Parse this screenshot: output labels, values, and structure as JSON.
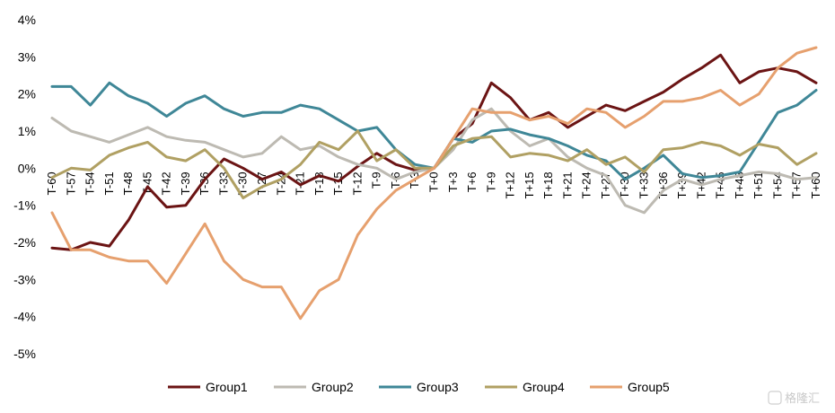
{
  "watermark": "格隆汇",
  "chart_data": {
    "type": "line",
    "ylim": [
      -5,
      4
    ],
    "y_ticks": [
      4,
      3,
      2,
      1,
      0,
      -1,
      -2,
      -3,
      -4,
      -5
    ],
    "y_tick_labels": [
      "4%",
      "3%",
      "2%",
      "1%",
      "0%",
      "-1%",
      "-2%",
      "-3%",
      "-4%",
      "-5%"
    ],
    "x_range": [
      -60,
      60
    ],
    "x_ticks": [
      -60,
      -57,
      -54,
      -51,
      -48,
      -45,
      -42,
      -39,
      -36,
      -33,
      -30,
      -27,
      -24,
      -21,
      -18,
      -15,
      -12,
      -9,
      -6,
      -3,
      0,
      3,
      6,
      9,
      12,
      15,
      18,
      21,
      24,
      27,
      30,
      33,
      36,
      39,
      42,
      45,
      48,
      51,
      54,
      57,
      60
    ],
    "x_tick_labels": [
      "T-60",
      "T-57",
      "T-54",
      "T-51",
      "T-48",
      "T-45",
      "T-42",
      "T-39",
      "T-36",
      "T-33",
      "T-30",
      "T-27",
      "T-24",
      "T-21",
      "T-18",
      "T-15",
      "T-12",
      "T-9",
      "T-6",
      "T-3",
      "T+0",
      "T+3",
      "T+6",
      "T+9",
      "T+12",
      "T+15",
      "T+18",
      "T+21",
      "T+24",
      "T+27",
      "T+30",
      "T+33",
      "T+36",
      "T+39",
      "T+42",
      "T+45",
      "T+48",
      "T+51",
      "T+54",
      "T+57",
      "T+60"
    ],
    "grid": false,
    "legend_position": "bottom",
    "series": [
      {
        "name": "Group1",
        "color": "#6b1414",
        "points": [
          [
            -60,
            -2.15
          ],
          [
            -57,
            -2.2
          ],
          [
            -54,
            -2.0
          ],
          [
            -51,
            -2.1
          ],
          [
            -48,
            -1.4
          ],
          [
            -45,
            -0.5
          ],
          [
            -42,
            -1.05
          ],
          [
            -39,
            -1.0
          ],
          [
            -36,
            -0.3
          ],
          [
            -33,
            0.25
          ],
          [
            -30,
            0.0
          ],
          [
            -27,
            -0.3
          ],
          [
            -24,
            -0.1
          ],
          [
            -21,
            -0.45
          ],
          [
            -18,
            -0.2
          ],
          [
            -15,
            -0.35
          ],
          [
            -12,
            0.05
          ],
          [
            -9,
            0.4
          ],
          [
            -6,
            0.1
          ],
          [
            -3,
            -0.05
          ],
          [
            0,
            0.0
          ],
          [
            3,
            0.8
          ],
          [
            6,
            1.2
          ],
          [
            9,
            2.3
          ],
          [
            12,
            1.9
          ],
          [
            15,
            1.3
          ],
          [
            18,
            1.5
          ],
          [
            21,
            1.1
          ],
          [
            24,
            1.4
          ],
          [
            27,
            1.7
          ],
          [
            30,
            1.55
          ],
          [
            33,
            1.8
          ],
          [
            36,
            2.05
          ],
          [
            39,
            2.4
          ],
          [
            42,
            2.7
          ],
          [
            45,
            3.05
          ],
          [
            48,
            2.3
          ],
          [
            51,
            2.6
          ],
          [
            54,
            2.7
          ],
          [
            57,
            2.6
          ],
          [
            60,
            2.3
          ]
        ]
      },
      {
        "name": "Group2",
        "color": "#bdbab2",
        "points": [
          [
            -60,
            1.35
          ],
          [
            -57,
            1.0
          ],
          [
            -54,
            0.85
          ],
          [
            -51,
            0.7
          ],
          [
            -48,
            0.9
          ],
          [
            -45,
            1.1
          ],
          [
            -42,
            0.85
          ],
          [
            -39,
            0.75
          ],
          [
            -36,
            0.7
          ],
          [
            -33,
            0.5
          ],
          [
            -30,
            0.3
          ],
          [
            -27,
            0.4
          ],
          [
            -24,
            0.85
          ],
          [
            -21,
            0.5
          ],
          [
            -18,
            0.6
          ],
          [
            -15,
            0.3
          ],
          [
            -12,
            0.1
          ],
          [
            -9,
            0.0
          ],
          [
            -6,
            -0.3
          ],
          [
            -3,
            -0.1
          ],
          [
            0,
            0.0
          ],
          [
            3,
            0.5
          ],
          [
            6,
            1.3
          ],
          [
            9,
            1.6
          ],
          [
            12,
            1.0
          ],
          [
            15,
            0.6
          ],
          [
            18,
            0.8
          ],
          [
            21,
            0.3
          ],
          [
            24,
            0.0
          ],
          [
            27,
            -0.2
          ],
          [
            30,
            -1.0
          ],
          [
            33,
            -1.2
          ],
          [
            36,
            -0.6
          ],
          [
            39,
            -0.3
          ],
          [
            42,
            -0.45
          ],
          [
            45,
            -0.3
          ],
          [
            48,
            -0.2
          ],
          [
            51,
            -0.1
          ],
          [
            54,
            -0.15
          ],
          [
            57,
            -0.3
          ],
          [
            60,
            -0.25
          ]
        ]
      },
      {
        "name": "Group3",
        "color": "#3f8797",
        "points": [
          [
            -60,
            2.2
          ],
          [
            -57,
            2.2
          ],
          [
            -54,
            1.7
          ],
          [
            -51,
            2.3
          ],
          [
            -48,
            1.95
          ],
          [
            -45,
            1.75
          ],
          [
            -42,
            1.4
          ],
          [
            -39,
            1.75
          ],
          [
            -36,
            1.95
          ],
          [
            -33,
            1.6
          ],
          [
            -30,
            1.4
          ],
          [
            -27,
            1.5
          ],
          [
            -24,
            1.5
          ],
          [
            -21,
            1.7
          ],
          [
            -18,
            1.6
          ],
          [
            -15,
            1.3
          ],
          [
            -12,
            1.0
          ],
          [
            -9,
            1.1
          ],
          [
            -6,
            0.5
          ],
          [
            -3,
            0.1
          ],
          [
            0,
            0.0
          ],
          [
            3,
            0.8
          ],
          [
            6,
            0.7
          ],
          [
            9,
            1.0
          ],
          [
            12,
            1.05
          ],
          [
            15,
            0.9
          ],
          [
            18,
            0.8
          ],
          [
            21,
            0.6
          ],
          [
            24,
            0.35
          ],
          [
            27,
            0.2
          ],
          [
            30,
            -0.3
          ],
          [
            33,
            0.0
          ],
          [
            36,
            0.35
          ],
          [
            39,
            -0.15
          ],
          [
            42,
            -0.25
          ],
          [
            45,
            -0.2
          ],
          [
            48,
            -0.1
          ],
          [
            51,
            0.7
          ],
          [
            54,
            1.5
          ],
          [
            57,
            1.7
          ],
          [
            60,
            2.1
          ]
        ]
      },
      {
        "name": "Group4",
        "color": "#b0a063",
        "points": [
          [
            -60,
            -0.25
          ],
          [
            -57,
            0.0
          ],
          [
            -54,
            -0.05
          ],
          [
            -51,
            0.35
          ],
          [
            -48,
            0.55
          ],
          [
            -45,
            0.7
          ],
          [
            -42,
            0.3
          ],
          [
            -39,
            0.2
          ],
          [
            -36,
            0.5
          ],
          [
            -33,
            0.0
          ],
          [
            -30,
            -0.8
          ],
          [
            -27,
            -0.5
          ],
          [
            -24,
            -0.3
          ],
          [
            -21,
            0.1
          ],
          [
            -18,
            0.7
          ],
          [
            -15,
            0.5
          ],
          [
            -12,
            1.0
          ],
          [
            -9,
            0.2
          ],
          [
            -6,
            0.5
          ],
          [
            -3,
            0.0
          ],
          [
            0,
            0.0
          ],
          [
            3,
            0.6
          ],
          [
            6,
            0.8
          ],
          [
            9,
            0.85
          ],
          [
            12,
            0.3
          ],
          [
            15,
            0.4
          ],
          [
            18,
            0.35
          ],
          [
            21,
            0.2
          ],
          [
            24,
            0.5
          ],
          [
            27,
            0.1
          ],
          [
            30,
            0.3
          ],
          [
            33,
            -0.1
          ],
          [
            36,
            0.5
          ],
          [
            39,
            0.55
          ],
          [
            42,
            0.7
          ],
          [
            45,
            0.6
          ],
          [
            48,
            0.35
          ],
          [
            51,
            0.65
          ],
          [
            54,
            0.55
          ],
          [
            57,
            0.1
          ],
          [
            60,
            0.4
          ]
        ]
      },
      {
        "name": "Group5",
        "color": "#e6a06e",
        "points": [
          [
            -60,
            -1.2
          ],
          [
            -57,
            -2.2
          ],
          [
            -54,
            -2.2
          ],
          [
            -51,
            -2.4
          ],
          [
            -48,
            -2.5
          ],
          [
            -45,
            -2.5
          ],
          [
            -42,
            -3.1
          ],
          [
            -39,
            -2.3
          ],
          [
            -36,
            -1.5
          ],
          [
            -33,
            -2.5
          ],
          [
            -30,
            -3.0
          ],
          [
            -27,
            -3.2
          ],
          [
            -24,
            -3.2
          ],
          [
            -21,
            -4.05
          ],
          [
            -18,
            -3.3
          ],
          [
            -15,
            -3.0
          ],
          [
            -12,
            -1.8
          ],
          [
            -9,
            -1.1
          ],
          [
            -6,
            -0.6
          ],
          [
            -3,
            -0.3
          ],
          [
            0,
            0.0
          ],
          [
            3,
            0.8
          ],
          [
            6,
            1.6
          ],
          [
            9,
            1.5
          ],
          [
            12,
            1.5
          ],
          [
            15,
            1.3
          ],
          [
            18,
            1.4
          ],
          [
            21,
            1.2
          ],
          [
            24,
            1.6
          ],
          [
            27,
            1.5
          ],
          [
            30,
            1.1
          ],
          [
            33,
            1.4
          ],
          [
            36,
            1.8
          ],
          [
            39,
            1.8
          ],
          [
            42,
            1.9
          ],
          [
            45,
            2.1
          ],
          [
            48,
            1.7
          ],
          [
            51,
            2.0
          ],
          [
            54,
            2.7
          ],
          [
            57,
            3.1
          ],
          [
            60,
            3.25
          ]
        ]
      }
    ]
  }
}
